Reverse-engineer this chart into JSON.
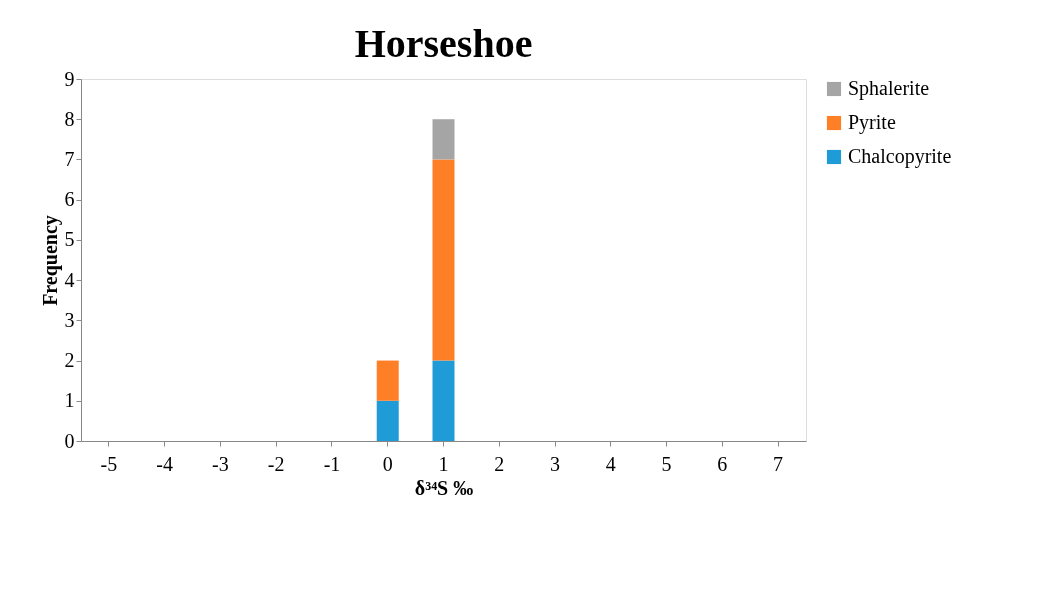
{
  "chart_data": {
    "type": "bar",
    "title": "Horseshoe",
    "xlabel": "δ³⁴S ‰",
    "ylabel": "Frequency",
    "categories": [
      "-5",
      "-4",
      "-3",
      "-2",
      "-1",
      "0",
      "1",
      "2",
      "3",
      "4",
      "5",
      "6",
      "7"
    ],
    "series": [
      {
        "name": "Chalcopyrite",
        "color": "#1f9bd7",
        "values": [
          0,
          0,
          0,
          0,
          0,
          1,
          2,
          0,
          0,
          0,
          0,
          0,
          0
        ]
      },
      {
        "name": "Pyrite",
        "color": "#ff7f27",
        "values": [
          0,
          0,
          0,
          0,
          0,
          1,
          5,
          0,
          0,
          0,
          0,
          0,
          0
        ]
      },
      {
        "name": "Sphalerite",
        "color": "#a5a5a5",
        "values": [
          0,
          0,
          0,
          0,
          0,
          0,
          1,
          0,
          0,
          0,
          0,
          0,
          0
        ]
      }
    ],
    "stacked": true,
    "ylim": [
      0,
      9
    ],
    "yticks": [
      0,
      1,
      2,
      3,
      4,
      5,
      6,
      7,
      8,
      9
    ],
    "grid": false,
    "legend": "right"
  }
}
